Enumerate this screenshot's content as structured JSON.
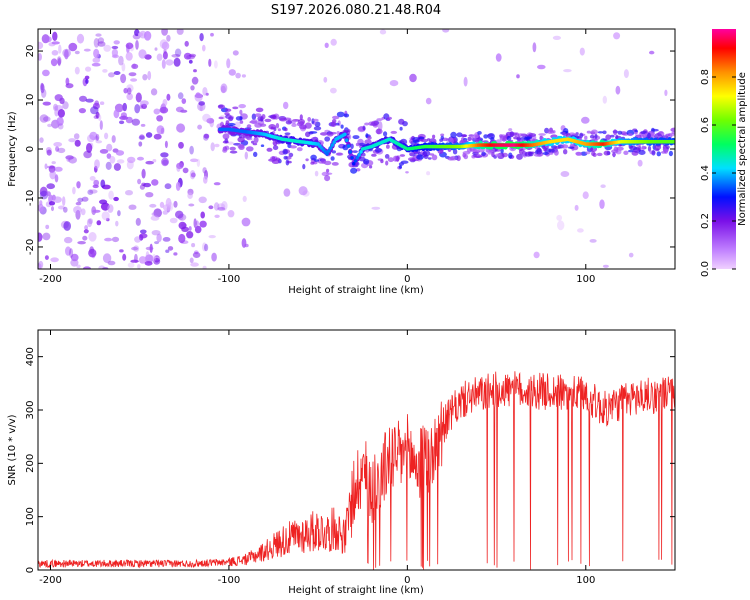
{
  "title": "S197.2026.080.21.48.R04",
  "chart_data": [
    {
      "type": "heatmap",
      "title": "S197.2026.080.21.48.R04",
      "xlabel": "Height of straight line (km)",
      "ylabel": "Frequency (Hz)",
      "xlim": [
        -207,
        150
      ],
      "ylim": [
        -24.5,
        24.5
      ],
      "xticks": [
        -200,
        -100,
        0,
        100
      ],
      "yticks": [
        -20,
        -10,
        0,
        10,
        20
      ],
      "colorbar": {
        "label": "Normalized spectral amplitude",
        "range": [
          0.0,
          1.0
        ],
        "ticks": [
          0.0,
          0.2,
          0.4,
          0.6,
          0.8
        ]
      },
      "ridge": {
        "description_points_x": [
          -100,
          -90,
          -80,
          -70,
          -60,
          -50,
          -45,
          -40,
          -35,
          -30,
          -25,
          -20,
          -10,
          0,
          10,
          20,
          30,
          40,
          50,
          60,
          70,
          80,
          90,
          100,
          110,
          120,
          130,
          140,
          150
        ],
        "frequency_hz": [
          4,
          3.5,
          3,
          2,
          1.5,
          1,
          -1,
          2,
          3,
          -3,
          0,
          0.5,
          2,
          0,
          0.5,
          0.5,
          0.5,
          0.8,
          0.8,
          0.8,
          0.8,
          1.5,
          2,
          1,
          1,
          1.5,
          1.5,
          1.5,
          1.5
        ],
        "amplitude": [
          0.35,
          0.35,
          0.4,
          0.45,
          0.45,
          0.4,
          0.35,
          0.4,
          0.4,
          0.3,
          0.45,
          0.45,
          0.45,
          0.5,
          0.55,
          0.6,
          0.65,
          0.85,
          0.95,
          0.98,
          0.85,
          0.75,
          0.75,
          0.8,
          0.9,
          0.7,
          0.65,
          0.6,
          0.6
        ]
      }
    },
    {
      "type": "line",
      "xlabel": "Height of straight line (km)",
      "ylabel": "SNR (10 * v/v)",
      "xlim": [
        -207,
        150
      ],
      "ylim": [
        0,
        450
      ],
      "xticks": [
        -200,
        -100,
        0,
        100
      ],
      "yticks": [
        0,
        100,
        200,
        300,
        400
      ],
      "series": [
        {
          "name": "SNR",
          "color": "#ee2222",
          "x": [
            -207,
            -180,
            -150,
            -120,
            -100,
            -90,
            -80,
            -70,
            -60,
            -50,
            -45,
            -40,
            -35,
            -30,
            -25,
            -20,
            -15,
            -10,
            -5,
            0,
            5,
            10,
            15,
            20,
            25,
            30,
            35,
            40,
            45,
            50,
            60,
            70,
            80,
            90,
            100,
            110,
            120,
            130,
            140,
            150
          ],
          "y": [
            12,
            12,
            12,
            12,
            15,
            20,
            35,
            55,
            65,
            75,
            70,
            80,
            60,
            150,
            190,
            155,
            170,
            215,
            210,
            225,
            195,
            205,
            220,
            270,
            295,
            315,
            325,
            328,
            333,
            338,
            338,
            335,
            335,
            330,
            330,
            300,
            315,
            325,
            328,
            332
          ]
        }
      ]
    }
  ]
}
